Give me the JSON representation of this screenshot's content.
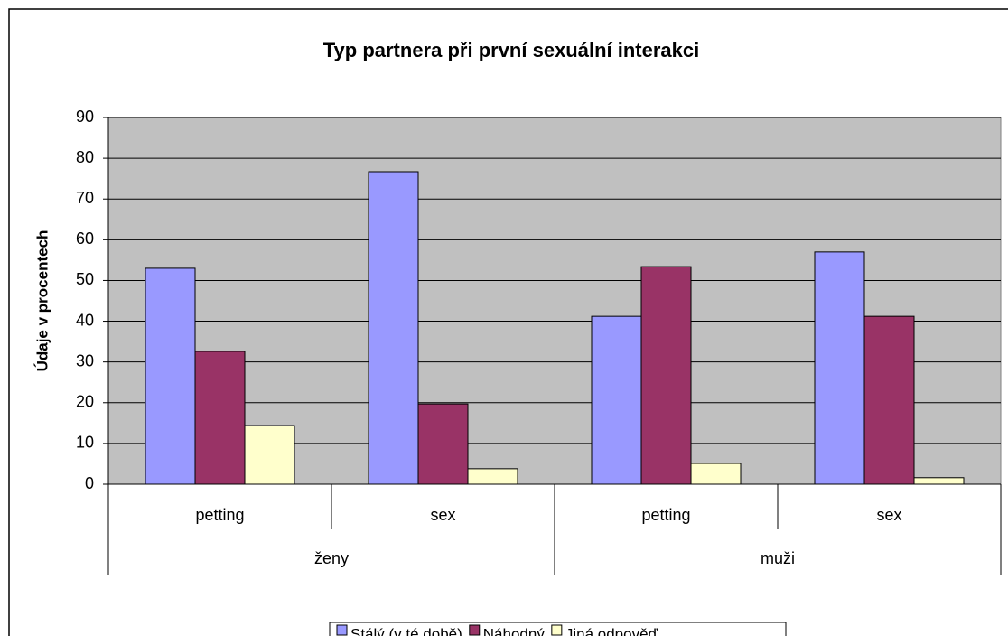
{
  "chart_data": {
    "type": "bar",
    "title": "Typ partnera při první sexuální interakci",
    "y_label": "Údaje v procentech",
    "categories": [
      "petting",
      "sex",
      "petting",
      "sex"
    ],
    "groups": [
      "ženy",
      "muži"
    ],
    "series": [
      {
        "name": "Stálý (v té době)",
        "color": "#9999ff",
        "values": [
          53,
          76.7,
          41.2,
          57
        ]
      },
      {
        "name": "Náhodný",
        "color": "#993366",
        "values": [
          32.6,
          19.7,
          53.4,
          41.2
        ]
      },
      {
        "name": "Jiná odpověď",
        "color": "#ffffcc",
        "values": [
          14.4,
          3.8,
          5.1,
          1.6
        ]
      }
    ],
    "ylim": [
      0,
      90
    ],
    "yticks": [
      0,
      10,
      20,
      30,
      40,
      50,
      60,
      70,
      80,
      90
    ],
    "grid": true,
    "plot_background": "#c0c0c0",
    "legend": "bottom"
  }
}
